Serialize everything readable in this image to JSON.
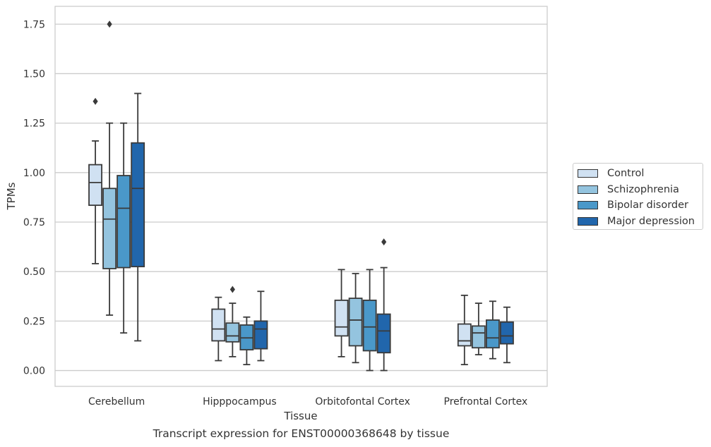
{
  "chart_data": {
    "type": "box",
    "title": "",
    "xlabel": "Tissue",
    "ylabel": "TPMs",
    "caption": "Transcript expression for ENST00000368648 by tissue",
    "categories": [
      "Cerebellum",
      "Hipppocampus",
      "Orbitofontal Cortex",
      "Prefrontal Cortex"
    ],
    "ylim": [
      -0.08,
      1.84
    ],
    "yticks": [
      0.0,
      0.25,
      0.5,
      0.75,
      1.0,
      1.25,
      1.5,
      1.75
    ],
    "ytick_labels": [
      "0.00",
      "0.25",
      "0.50",
      "0.75",
      "1.00",
      "1.25",
      "1.50",
      "1.75"
    ],
    "grid": "horizontal",
    "legend_position": "right",
    "series": [
      {
        "name": "Control",
        "color": "#d0e1f2",
        "boxes": [
          {
            "whislo": 0.54,
            "q1": 0.835,
            "med": 0.95,
            "q3": 1.04,
            "whishi": 1.16,
            "fliers": [
              1.36
            ]
          },
          {
            "whislo": 0.05,
            "q1": 0.15,
            "med": 0.21,
            "q3": 0.31,
            "whishi": 0.37,
            "fliers": []
          },
          {
            "whislo": 0.07,
            "q1": 0.175,
            "med": 0.22,
            "q3": 0.355,
            "whishi": 0.51,
            "fliers": []
          },
          {
            "whislo": 0.03,
            "q1": 0.125,
            "med": 0.15,
            "q3": 0.235,
            "whishi": 0.38,
            "fliers": []
          }
        ]
      },
      {
        "name": "Schizophrenia",
        "color": "#94c4df",
        "boxes": [
          {
            "whislo": 0.28,
            "q1": 0.515,
            "med": 0.765,
            "q3": 0.92,
            "whishi": 1.25,
            "fliers": [
              1.75
            ]
          },
          {
            "whislo": 0.07,
            "q1": 0.145,
            "med": 0.175,
            "q3": 0.24,
            "whishi": 0.34,
            "fliers": [
              0.41
            ]
          },
          {
            "whislo": 0.04,
            "q1": 0.125,
            "med": 0.255,
            "q3": 0.365,
            "whishi": 0.49,
            "fliers": []
          },
          {
            "whislo": 0.08,
            "q1": 0.115,
            "med": 0.19,
            "q3": 0.225,
            "whishi": 0.34,
            "fliers": []
          }
        ]
      },
      {
        "name": "Bipolar disorder",
        "color": "#4a98c9",
        "boxes": [
          {
            "whislo": 0.19,
            "q1": 0.52,
            "med": 0.82,
            "q3": 0.985,
            "whishi": 1.25,
            "fliers": []
          },
          {
            "whislo": 0.03,
            "q1": 0.105,
            "med": 0.165,
            "q3": 0.23,
            "whishi": 0.27,
            "fliers": []
          },
          {
            "whislo": 0.0,
            "q1": 0.1,
            "med": 0.22,
            "q3": 0.355,
            "whishi": 0.51,
            "fliers": []
          },
          {
            "whislo": 0.06,
            "q1": 0.115,
            "med": 0.165,
            "q3": 0.255,
            "whishi": 0.35,
            "fliers": []
          }
        ]
      },
      {
        "name": "Major depression",
        "color": "#2166ac",
        "boxes": [
          {
            "whislo": 0.15,
            "q1": 0.525,
            "med": 0.92,
            "q3": 1.15,
            "whishi": 1.4,
            "fliers": []
          },
          {
            "whislo": 0.05,
            "q1": 0.11,
            "med": 0.21,
            "q3": 0.25,
            "whishi": 0.4,
            "fliers": []
          },
          {
            "whislo": 0.0,
            "q1": 0.09,
            "med": 0.2,
            "q3": 0.285,
            "whishi": 0.52,
            "fliers": [
              0.65
            ]
          },
          {
            "whislo": 0.04,
            "q1": 0.135,
            "med": 0.175,
            "q3": 0.245,
            "whishi": 0.32,
            "fliers": []
          }
        ]
      }
    ]
  }
}
